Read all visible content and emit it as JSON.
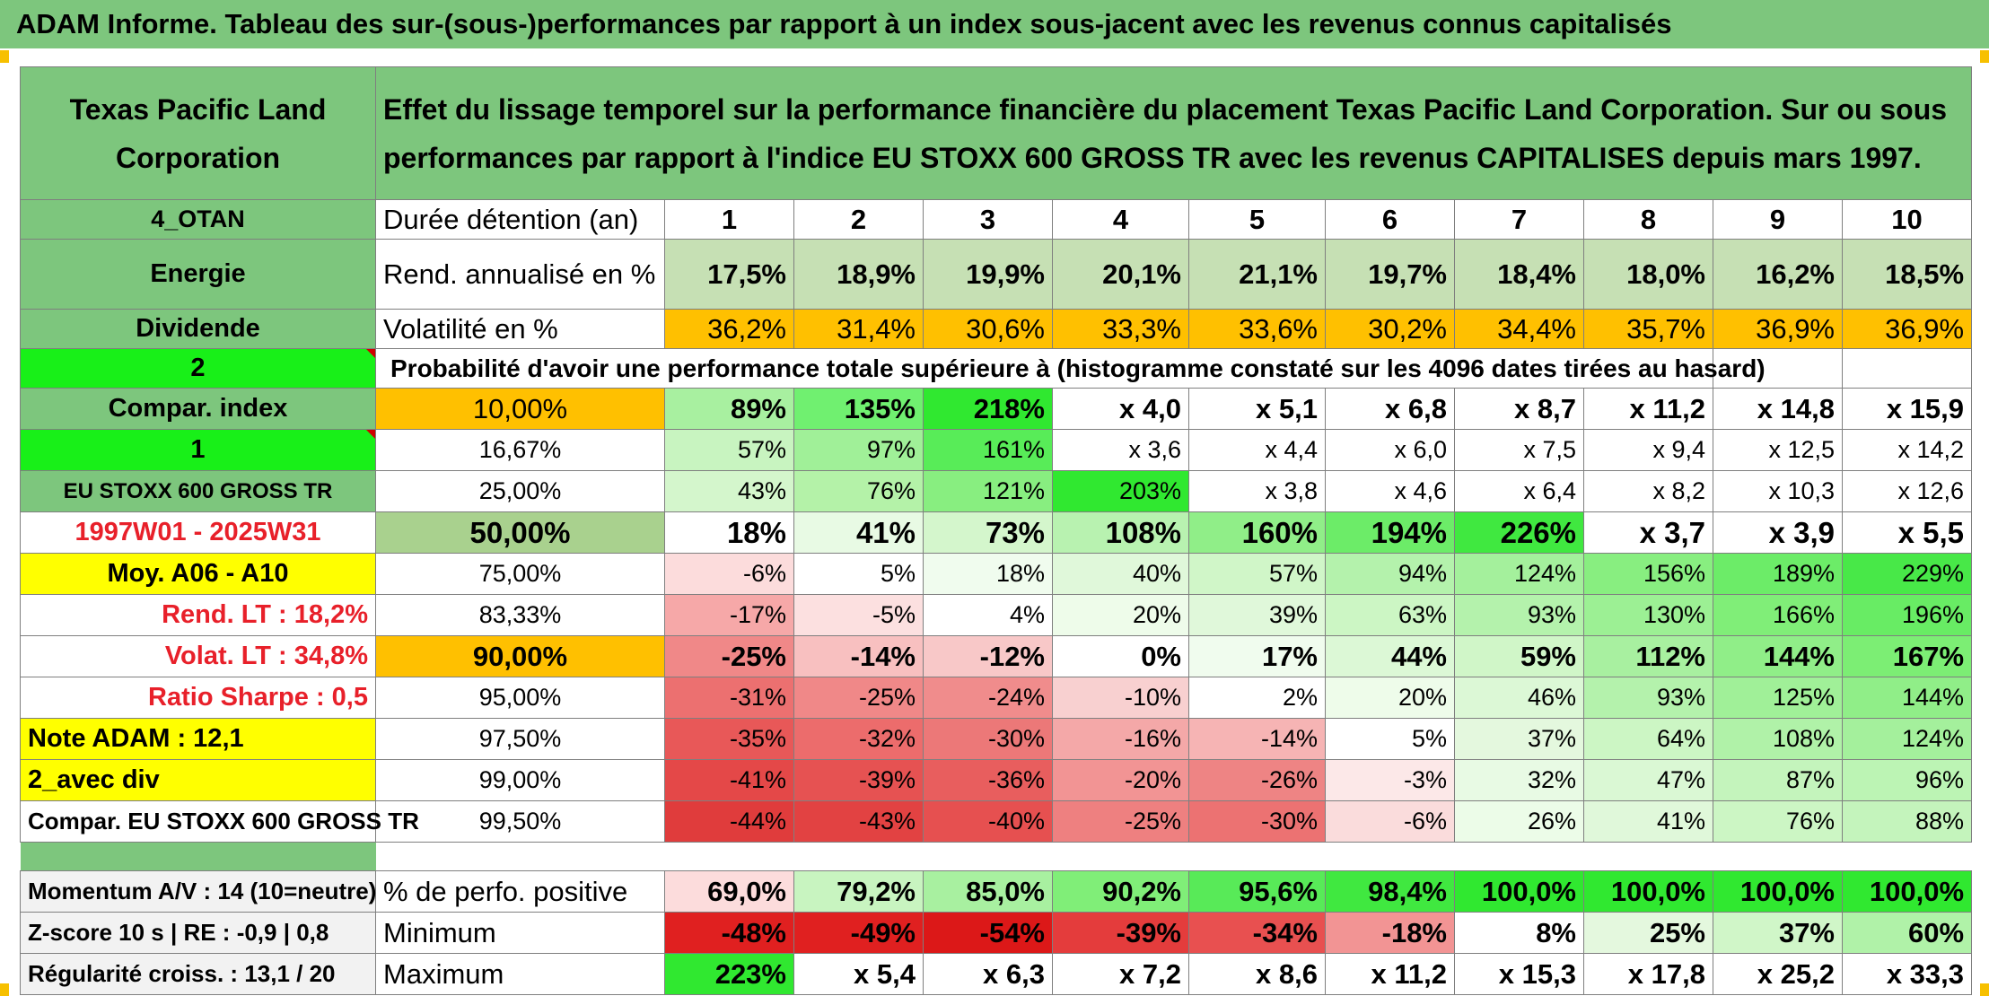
{
  "title": "ADAM Informe. Tableau des sur-(sous-)performances par rapport à un index sous-jacent avec les revenus connus capitalisés",
  "colors": {
    "header_green": "#7dc67d",
    "bright_green": "#18f018",
    "yellow": "#ffff00",
    "orange": "#ffc000",
    "red_text": "#e8202a"
  },
  "left": {
    "company": "Texas Pacific Land Corporation",
    "code": "4_OTAN",
    "sector": "Energie",
    "type": "Dividende",
    "num2": "2",
    "compar_index": "Compar. index",
    "num1": "1",
    "index_name": "EU STOXX 600 GROSS TR",
    "period": "1997W01 - 2025W31",
    "moy": "Moy. A06 - A10",
    "rend_lt": "Rend. LT :   18,2%",
    "volat_lt": "Volat. LT :   34,8%",
    "sharpe": "Ratio Sharpe :   0,5",
    "note": "Note ADAM : 12,1",
    "avec_div": "2_avec div",
    "compar_full": "Compar. EU STOXX 600 GROSS TR",
    "momentum": "Momentum A/V : 14 (10=neutre)",
    "zscore": "Z-score 10 s | RE : -0,9 | 0,8",
    "regularite": "Régularité croiss. : 13,1 / 20"
  },
  "header_text": "Effet du lissage temporel sur la performance financière du placement Texas Pacific Land Corporation. Sur ou sous performances par rapport à l'indice EU STOXX 600 GROSS TR avec les revenus CAPITALISES depuis mars 1997.",
  "durations_label": "Durée détention (an)",
  "durations": [
    "1",
    "2",
    "3",
    "4",
    "5",
    "6",
    "7",
    "8",
    "9",
    "10"
  ],
  "rend_label": "Rend. annualisé en %",
  "rend": [
    "17,5%",
    "18,9%",
    "19,9%",
    "20,1%",
    "21,1%",
    "19,7%",
    "18,4%",
    "18,0%",
    "16,2%",
    "18,5%"
  ],
  "vol_label": "Volatilité en %",
  "vol": [
    "36,2%",
    "31,4%",
    "30,6%",
    "33,3%",
    "33,6%",
    "30,2%",
    "34,4%",
    "35,7%",
    "36,9%",
    "36,9%"
  ],
  "prob_label": "Probabilité d'avoir une performance totale supérieure à (histogramme constaté sur les 4096 dates tirées au hasard)",
  "rows": [
    {
      "pct": "10,00%",
      "vals": [
        "89%",
        "135%",
        "218%",
        "x 4,0",
        "x 5,1",
        "x 6,8",
        "x 8,7",
        "x 11,2",
        "x 14,8",
        "x 15,9"
      ]
    },
    {
      "pct": "16,67%",
      "vals": [
        "57%",
        "97%",
        "161%",
        "x 3,6",
        "x 4,4",
        "x 6,0",
        "x 7,5",
        "x 9,4",
        "x 12,5",
        "x 14,2"
      ]
    },
    {
      "pct": "25,00%",
      "vals": [
        "43%",
        "76%",
        "121%",
        "203%",
        "x 3,8",
        "x 4,6",
        "x 6,4",
        "x 8,2",
        "x 10,3",
        "x 12,6"
      ]
    },
    {
      "pct": "50,00%",
      "vals": [
        "18%",
        "41%",
        "73%",
        "108%",
        "160%",
        "194%",
        "226%",
        "x 3,7",
        "x 3,9",
        "x 5,5"
      ]
    },
    {
      "pct": "75,00%",
      "vals": [
        "-6%",
        "5%",
        "18%",
        "40%",
        "57%",
        "94%",
        "124%",
        "156%",
        "189%",
        "229%"
      ]
    },
    {
      "pct": "83,33%",
      "vals": [
        "-17%",
        "-5%",
        "4%",
        "20%",
        "39%",
        "63%",
        "93%",
        "130%",
        "166%",
        "196%"
      ]
    },
    {
      "pct": "90,00%",
      "vals": [
        "-25%",
        "-14%",
        "-12%",
        "0%",
        "17%",
        "44%",
        "59%",
        "112%",
        "144%",
        "167%"
      ]
    },
    {
      "pct": "95,00%",
      "vals": [
        "-31%",
        "-25%",
        "-24%",
        "-10%",
        "2%",
        "20%",
        "46%",
        "93%",
        "125%",
        "144%"
      ]
    },
    {
      "pct": "97,50%",
      "vals": [
        "-35%",
        "-32%",
        "-30%",
        "-16%",
        "-14%",
        "5%",
        "37%",
        "64%",
        "108%",
        "124%"
      ]
    },
    {
      "pct": "99,00%",
      "vals": [
        "-41%",
        "-39%",
        "-36%",
        "-20%",
        "-26%",
        "-3%",
        "32%",
        "47%",
        "87%",
        "96%"
      ]
    },
    {
      "pct": "99,50%",
      "vals": [
        "-44%",
        "-43%",
        "-40%",
        "-25%",
        "-30%",
        "-6%",
        "26%",
        "41%",
        "76%",
        "88%"
      ]
    }
  ],
  "pos_label": "% de perfo. positive",
  "pos": [
    "69,0%",
    "79,2%",
    "85,0%",
    "90,2%",
    "95,6%",
    "98,4%",
    "100,0%",
    "100,0%",
    "100,0%",
    "100,0%"
  ],
  "min_label": "Minimum",
  "min": [
    "-48%",
    "-49%",
    "-54%",
    "-39%",
    "-34%",
    "-18%",
    "8%",
    "25%",
    "37%",
    "60%"
  ],
  "max_label": "Maximum",
  "max": [
    "223%",
    "x 5,4",
    "x 6,3",
    "x 7,2",
    "x 8,6",
    "x 11,2",
    "x 15,3",
    "x 17,8",
    "x 25,2",
    "x 33,3"
  ]
}
